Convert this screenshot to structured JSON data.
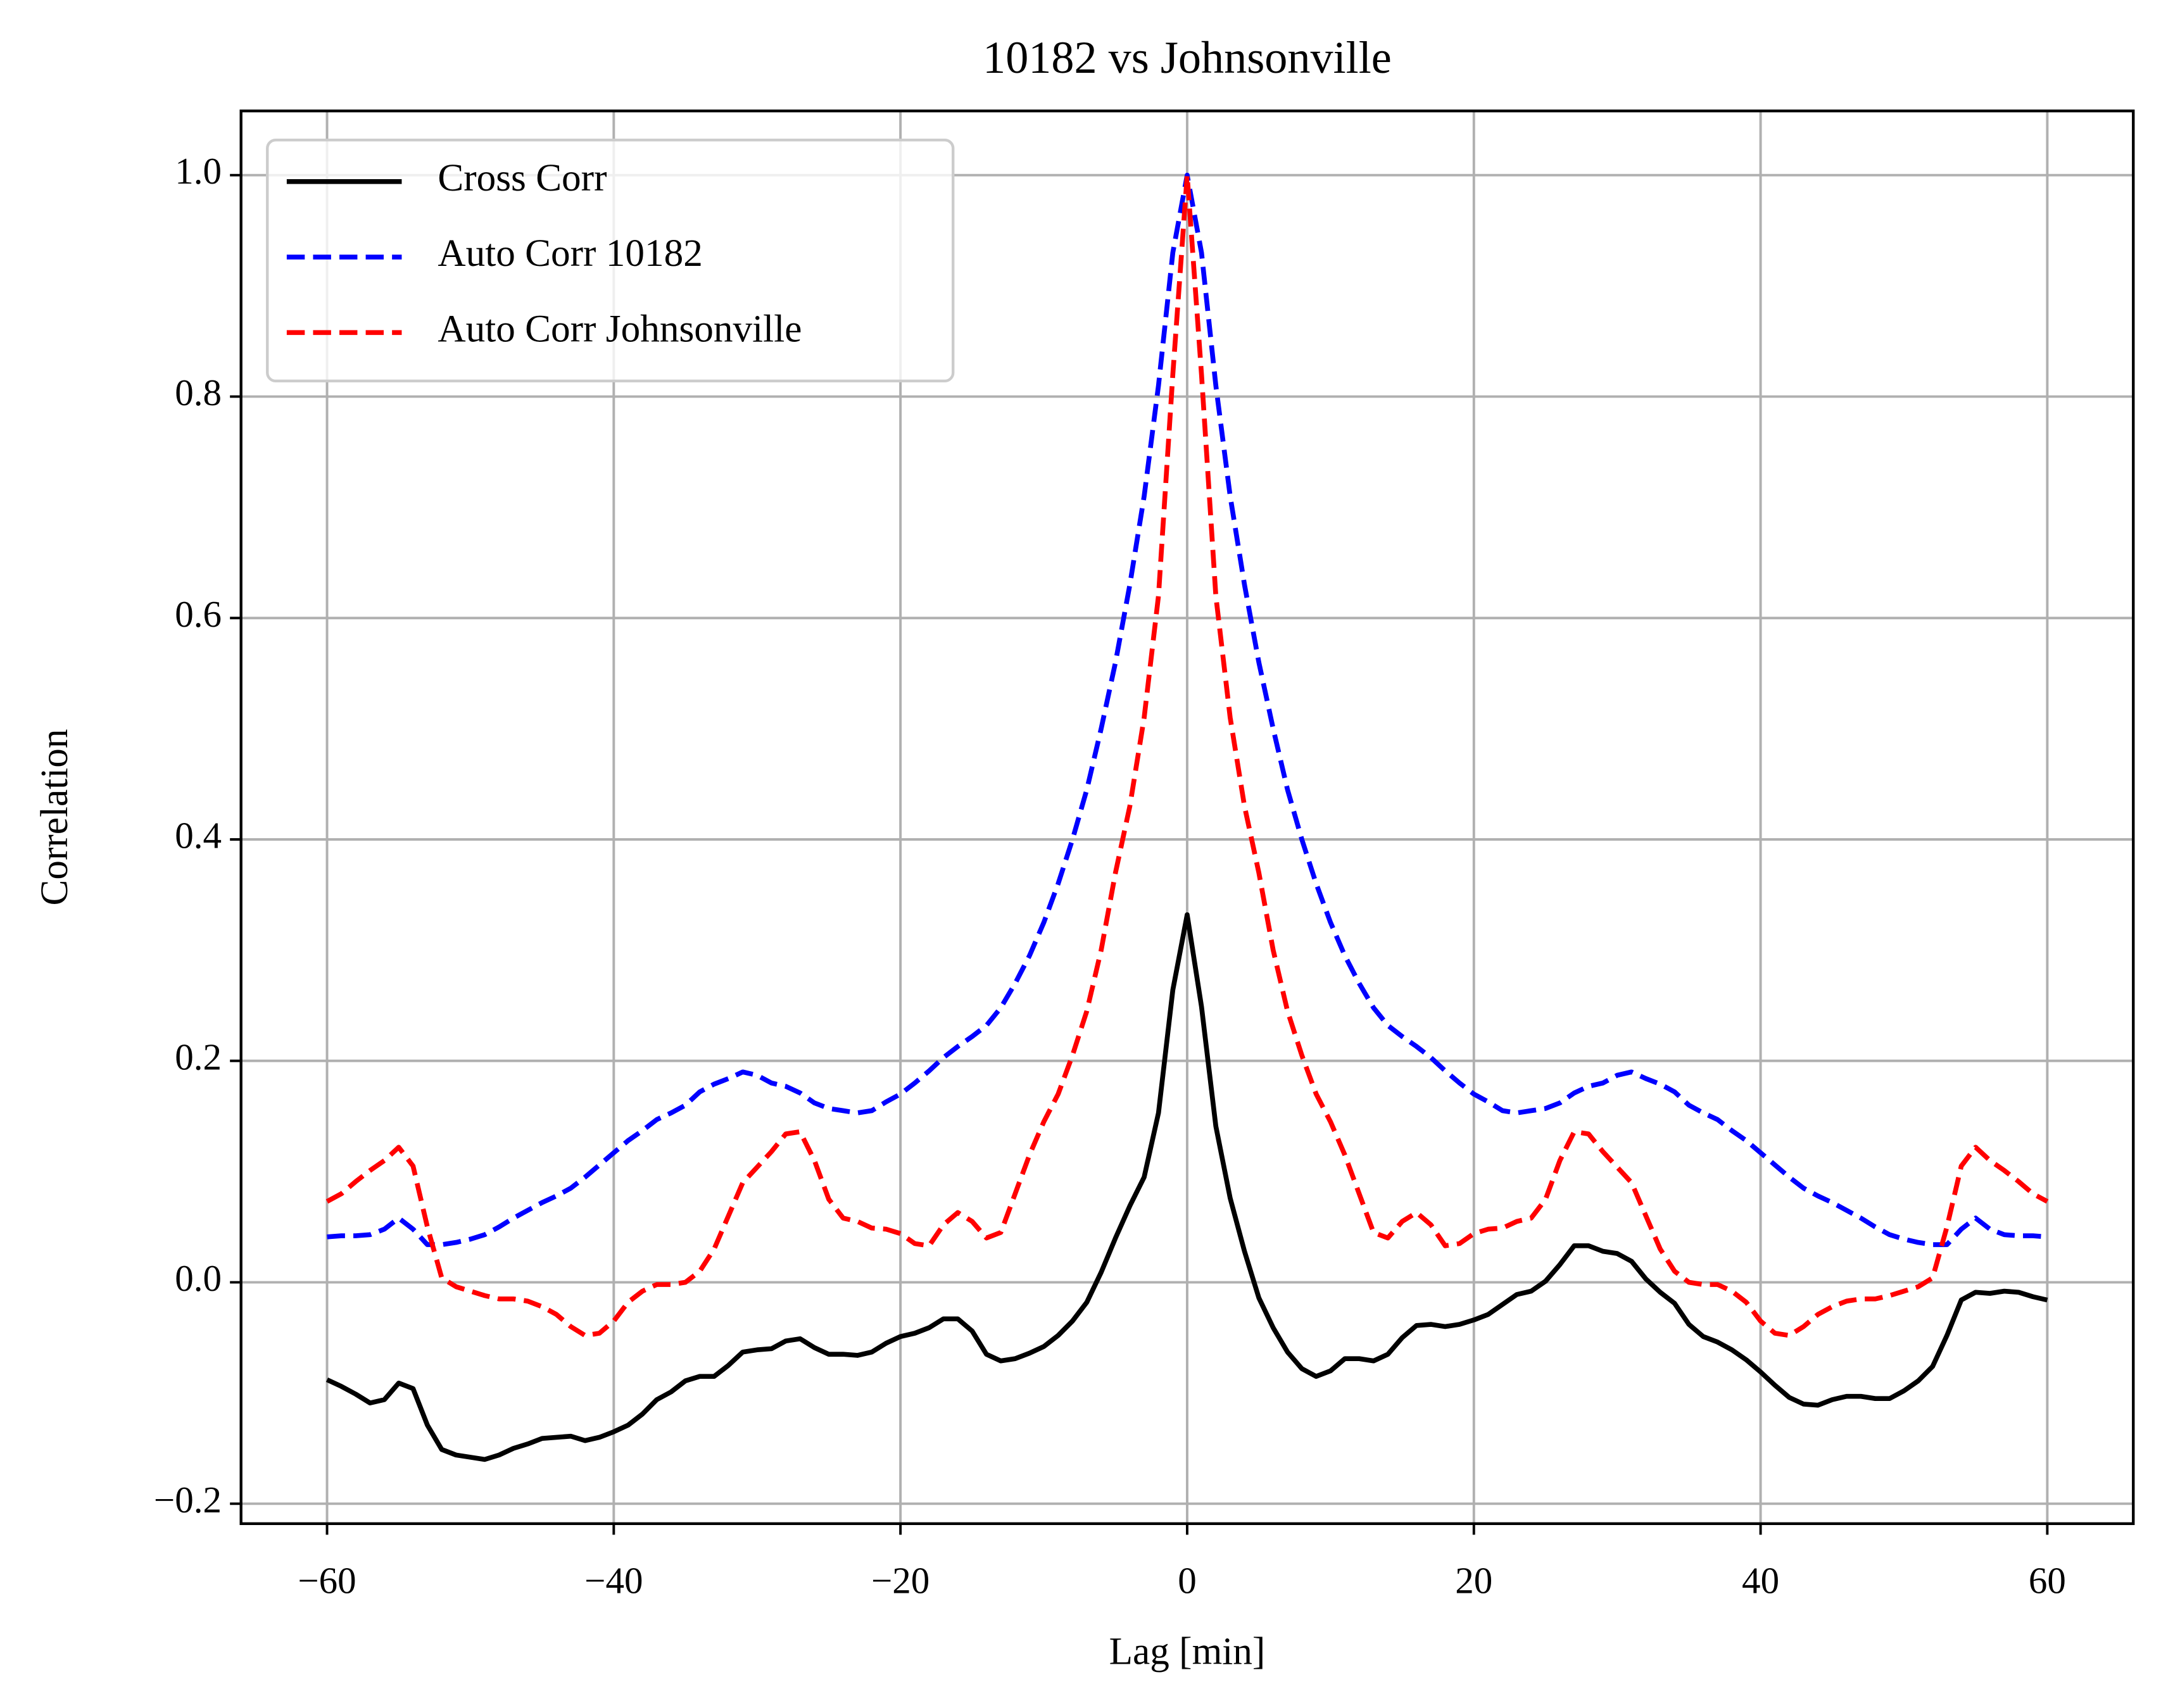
{
  "chart_data": {
    "type": "line",
    "title": "10182 vs Johnsonville",
    "x_label": "Lag [min]",
    "y_label": "Correlation",
    "x": [
      -60,
      -59,
      -58,
      -57,
      -56,
      -55,
      -54,
      -53,
      -52,
      -51,
      -50,
      -49,
      -48,
      -47,
      -46,
      -45,
      -44,
      -43,
      -42,
      -41,
      -40,
      -39,
      -38,
      -37,
      -36,
      -35,
      -34,
      -33,
      -32,
      -31,
      -30,
      -29,
      -28,
      -27,
      -26,
      -25,
      -24,
      -23,
      -22,
      -21,
      -20,
      -19,
      -18,
      -17,
      -16,
      -15,
      -14,
      -13,
      -12,
      -11,
      -10,
      -9,
      -8,
      -7,
      -6,
      -5,
      -4,
      -3,
      -2,
      -1,
      0,
      1,
      2,
      3,
      4,
      5,
      6,
      7,
      8,
      9,
      10,
      11,
      12,
      13,
      14,
      15,
      16,
      17,
      18,
      19,
      20,
      21,
      22,
      23,
      24,
      25,
      26,
      27,
      28,
      29,
      30,
      31,
      32,
      33,
      34,
      35,
      36,
      37,
      38,
      39,
      40,
      41,
      42,
      43,
      44,
      45,
      46,
      47,
      48,
      49,
      50,
      51,
      52,
      53,
      54,
      55,
      56,
      57,
      58,
      59,
      60
    ],
    "series": [
      {
        "name": "Cross Corr",
        "color": "#000000",
        "dashed": false,
        "values": [
          -0.088,
          -0.094,
          -0.101,
          -0.109,
          -0.106,
          -0.091,
          -0.096,
          -0.129,
          -0.151,
          -0.156,
          -0.158,
          -0.16,
          -0.156,
          -0.15,
          -0.146,
          -0.141,
          -0.14,
          -0.139,
          -0.143,
          -0.14,
          -0.135,
          -0.129,
          -0.119,
          -0.106,
          -0.099,
          -0.089,
          -0.085,
          -0.085,
          -0.075,
          -0.063,
          -0.061,
          -0.06,
          -0.053,
          -0.051,
          -0.059,
          -0.065,
          -0.065,
          -0.066,
          -0.063,
          -0.055,
          -0.049,
          -0.046,
          -0.041,
          -0.033,
          -0.033,
          -0.044,
          -0.065,
          -0.071,
          -0.069,
          -0.064,
          -0.058,
          -0.048,
          -0.035,
          -0.018,
          0.009,
          0.04,
          0.069,
          0.095,
          0.153,
          0.264,
          0.332,
          0.249,
          0.141,
          0.076,
          0.028,
          -0.014,
          -0.041,
          -0.063,
          -0.078,
          -0.085,
          -0.08,
          -0.069,
          -0.069,
          -0.071,
          -0.065,
          -0.05,
          -0.039,
          -0.038,
          -0.04,
          -0.038,
          -0.034,
          -0.029,
          -0.02,
          -0.011,
          -0.008,
          0.001,
          0.016,
          0.033,
          0.033,
          0.028,
          0.026,
          0.019,
          0.003,
          -0.009,
          -0.019,
          -0.038,
          -0.049,
          -0.054,
          -0.061,
          -0.07,
          -0.081,
          -0.093,
          -0.104,
          -0.11,
          -0.111,
          -0.106,
          -0.103,
          -0.103,
          -0.105,
          -0.105,
          -0.098,
          -0.089,
          -0.076,
          -0.048,
          -0.016,
          -0.009,
          -0.01,
          -0.008,
          -0.009,
          -0.013,
          -0.016
        ]
      },
      {
        "name": "Auto Corr 10182",
        "color": "#0000ff",
        "dashed": true,
        "values": [
          0.041,
          0.042,
          0.042,
          0.043,
          0.048,
          0.058,
          0.048,
          0.034,
          0.034,
          0.036,
          0.039,
          0.043,
          0.05,
          0.058,
          0.065,
          0.072,
          0.078,
          0.085,
          0.095,
          0.106,
          0.117,
          0.128,
          0.137,
          0.147,
          0.153,
          0.16,
          0.172,
          0.179,
          0.184,
          0.19,
          0.187,
          0.18,
          0.177,
          0.171,
          0.162,
          0.157,
          0.155,
          0.153,
          0.155,
          0.163,
          0.17,
          0.18,
          0.191,
          0.203,
          0.213,
          0.222,
          0.232,
          0.248,
          0.27,
          0.295,
          0.325,
          0.36,
          0.4,
          0.445,
          0.5,
          0.56,
          0.63,
          0.71,
          0.81,
          0.93,
          1.0,
          0.93,
          0.81,
          0.71,
          0.63,
          0.56,
          0.5,
          0.445,
          0.4,
          0.36,
          0.325,
          0.295,
          0.27,
          0.248,
          0.232,
          0.222,
          0.213,
          0.203,
          0.191,
          0.18,
          0.17,
          0.163,
          0.155,
          0.153,
          0.155,
          0.157,
          0.162,
          0.171,
          0.177,
          0.18,
          0.187,
          0.19,
          0.184,
          0.179,
          0.172,
          0.16,
          0.153,
          0.147,
          0.137,
          0.128,
          0.117,
          0.106,
          0.095,
          0.085,
          0.078,
          0.072,
          0.065,
          0.058,
          0.05,
          0.043,
          0.039,
          0.036,
          0.034,
          0.034,
          0.048,
          0.058,
          0.048,
          0.043,
          0.042,
          0.042,
          0.041
        ]
      },
      {
        "name": "Auto Corr Johnsonville",
        "color": "#ff0000",
        "dashed": true,
        "values": [
          0.073,
          0.08,
          0.091,
          0.101,
          0.11,
          0.122,
          0.105,
          0.05,
          0.004,
          -0.004,
          -0.008,
          -0.012,
          -0.015,
          -0.015,
          -0.017,
          -0.022,
          -0.029,
          -0.04,
          -0.048,
          -0.046,
          -0.035,
          -0.018,
          -0.008,
          -0.002,
          -0.002,
          0.0,
          0.01,
          0.03,
          0.06,
          0.09,
          0.104,
          0.118,
          0.134,
          0.136,
          0.11,
          0.075,
          0.058,
          0.055,
          0.049,
          0.048,
          0.044,
          0.035,
          0.033,
          0.052,
          0.063,
          0.055,
          0.04,
          0.045,
          0.08,
          0.115,
          0.145,
          0.17,
          0.205,
          0.245,
          0.3,
          0.37,
          0.43,
          0.51,
          0.62,
          0.82,
          1.0,
          0.82,
          0.62,
          0.51,
          0.43,
          0.37,
          0.3,
          0.245,
          0.205,
          0.17,
          0.145,
          0.115,
          0.08,
          0.045,
          0.04,
          0.055,
          0.063,
          0.052,
          0.033,
          0.035,
          0.044,
          0.048,
          0.049,
          0.055,
          0.058,
          0.075,
          0.11,
          0.136,
          0.134,
          0.118,
          0.104,
          0.09,
          0.06,
          0.03,
          0.01,
          0.0,
          -0.002,
          -0.002,
          -0.008,
          -0.018,
          -0.035,
          -0.046,
          -0.048,
          -0.04,
          -0.029,
          -0.022,
          -0.017,
          -0.015,
          -0.015,
          -0.012,
          -0.008,
          -0.004,
          0.004,
          0.05,
          0.105,
          0.122,
          0.11,
          0.101,
          0.091,
          0.08,
          0.073
        ]
      }
    ],
    "xlim": [
      -66,
      66
    ],
    "ylim": [
      -0.218,
      1.058
    ],
    "xticks": [
      {
        "value": -60,
        "label": "−60"
      },
      {
        "value": -40,
        "label": "−40"
      },
      {
        "value": -20,
        "label": "−20"
      },
      0,
      20,
      40,
      60
    ],
    "yticks": [
      {
        "value": -0.2,
        "label": "−0.2"
      },
      {
        "value": 0,
        "label": "0.0"
      },
      0.2,
      0.4,
      0.6,
      0.8,
      {
        "value": 1,
        "label": "1.0"
      }
    ],
    "grid": true,
    "legend": "upper left"
  }
}
